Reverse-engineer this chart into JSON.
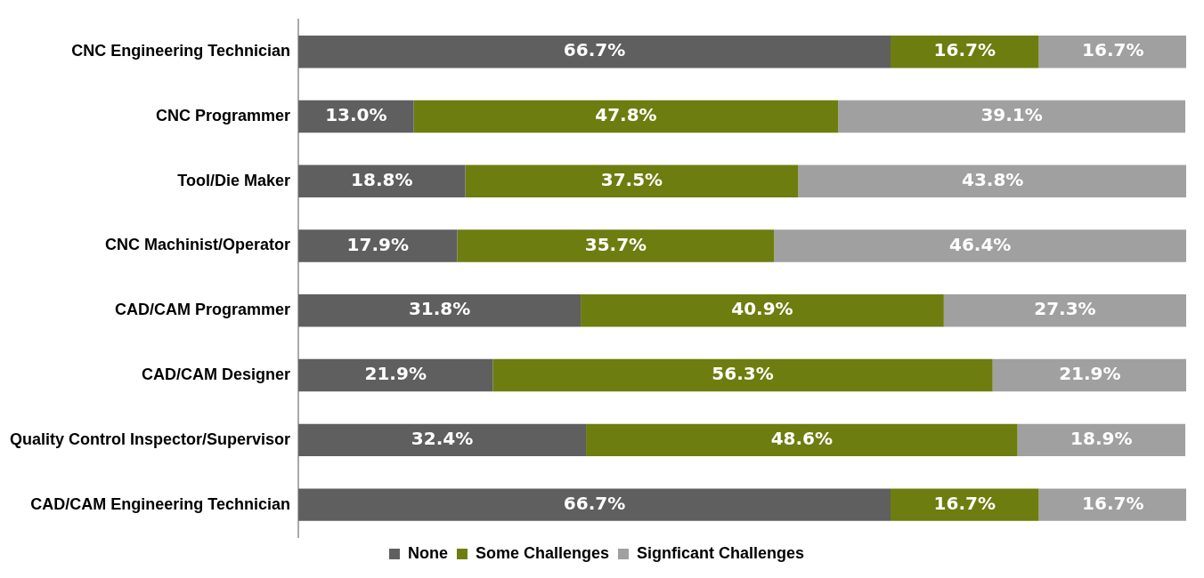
{
  "chart_data": {
    "type": "bar",
    "orientation": "horizontal",
    "stacked": true,
    "categories": [
      "CNC Engineering Technician",
      "CNC Programmer",
      "Tool/Die Maker",
      "CNC Machinist/Operator",
      "CAD/CAM Programmer",
      "CAD/CAM Designer",
      "Quality Control Inspector/Supervisor",
      "CAD/CAM Engineering Technician"
    ],
    "xlim": [
      0,
      100
    ],
    "tick_labels": "y",
    "grid": false,
    "legend": "bottom",
    "series": [
      {
        "name": "None",
        "color": "#5f5f5f",
        "values": [
          66.7,
          13.0,
          18.8,
          17.9,
          31.8,
          21.9,
          32.4,
          66.7
        ],
        "value_labels": [
          "66.7%",
          "13.0%",
          "18.8%",
          "17.9%",
          "31.8%",
          "21.9%",
          "32.4%",
          "66.7%"
        ]
      },
      {
        "name": "Some Challenges",
        "color": "#6e7d0f",
        "values": [
          16.7,
          47.8,
          37.5,
          35.7,
          40.9,
          56.3,
          48.6,
          16.7
        ],
        "value_labels": [
          "16.7%",
          "47.8%",
          "37.5%",
          "35.7%",
          "40.9%",
          "56.3%",
          "48.6%",
          "16.7%"
        ]
      },
      {
        "name": "Signficant Challenges",
        "color": "#a0a0a0",
        "values": [
          16.7,
          39.1,
          43.8,
          46.4,
          27.3,
          21.9,
          18.9,
          16.7
        ],
        "value_labels": [
          "16.7%",
          "39.1%",
          "43.8%",
          "46.4%",
          "27.3%",
          "21.9%",
          "18.9%",
          "16.7%"
        ]
      }
    ]
  }
}
